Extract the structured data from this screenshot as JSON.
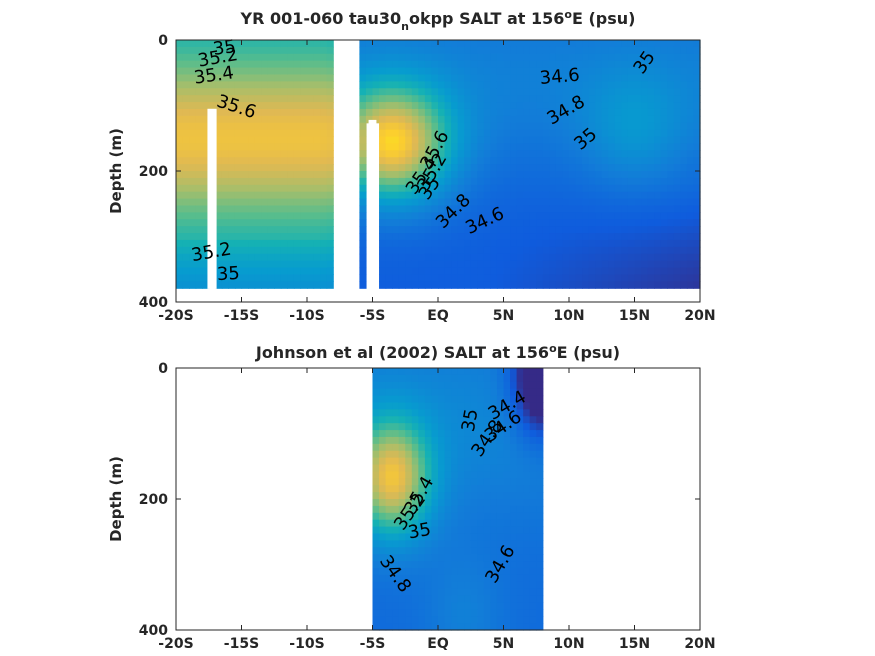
{
  "chart_data": [
    {
      "type": "heatmap",
      "subtype": "filled-contour",
      "title": "YR 001-060 tau30_nokpp SALT at 156°E (psu)",
      "title_parts": [
        "YR 001-060 tau30",
        "n",
        "okpp SALT at 156",
        "o",
        "E (psu)"
      ],
      "ylabel": "Depth (m)",
      "xlim": [
        -20,
        20
      ],
      "ylim": [
        400,
        0
      ],
      "y_reversed": true,
      "x_ticks": [
        -20,
        -15,
        -10,
        -5,
        0,
        5,
        10,
        15,
        20
      ],
      "x_tick_labels": [
        "-20S",
        "-15S",
        "-10S",
        "-5S",
        "EQ",
        "5N",
        "10N",
        "15N",
        "20N"
      ],
      "y_ticks": [
        0,
        200,
        400
      ],
      "y_tick_labels": [
        "0",
        "200",
        "400"
      ],
      "data_extent": {
        "x": [
          -20,
          20
        ],
        "y": [
          0,
          380
        ]
      },
      "missing_columns": [
        {
          "x": [
            -17.6,
            -16.9
          ],
          "y": [
            105,
            380
          ]
        },
        {
          "x": [
            -7.9,
            -6.1
          ],
          "y": [
            0,
            380
          ]
        },
        {
          "x": [
            -5.3,
            -4.7
          ],
          "y": [
            122,
            380
          ]
        }
      ],
      "color_range": [
        34.2,
        35.8
      ],
      "contour_labels": [
        {
          "text": "35",
          "x": -16.3,
          "y": 13,
          "angle": -8
        },
        {
          "text": "35.2",
          "x": -16.8,
          "y": 28,
          "angle": -10
        },
        {
          "text": "35.4",
          "x": -17.1,
          "y": 55,
          "angle": -8
        },
        {
          "text": "35.6",
          "x": -15.4,
          "y": 103,
          "angle": 18
        },
        {
          "text": "35.2",
          "x": -17.3,
          "y": 325,
          "angle": -10
        },
        {
          "text": "35",
          "x": -16.0,
          "y": 358,
          "angle": -3
        },
        {
          "text": "35.6",
          "x": -0.2,
          "y": 168,
          "angle": -62
        },
        {
          "text": "35.4",
          "x": -1.2,
          "y": 208,
          "angle": -55
        },
        {
          "text": "35.2",
          "x": -0.4,
          "y": 202,
          "angle": -60
        },
        {
          "text": "35",
          "x": -0.6,
          "y": 227,
          "angle": -55
        },
        {
          "text": "34.8",
          "x": 1.2,
          "y": 262,
          "angle": -45
        },
        {
          "text": "34.6",
          "x": 3.6,
          "y": 277,
          "angle": -25
        },
        {
          "text": "34.6",
          "x": 9.3,
          "y": 57,
          "angle": -5
        },
        {
          "text": "34.8",
          "x": 9.8,
          "y": 108,
          "angle": -30
        },
        {
          "text": "35",
          "x": 11.3,
          "y": 152,
          "angle": -40
        },
        {
          "text": "35",
          "x": 15.8,
          "y": 35,
          "angle": -55
        }
      ]
    },
    {
      "type": "heatmap",
      "subtype": "filled-contour",
      "title": "Johnson et al (2002) SALT at 156°E (psu)",
      "title_parts": [
        "Johnson et al (2002) SALT at 156",
        "o",
        "E (psu)"
      ],
      "ylabel": "Depth (m)",
      "xlim": [
        -20,
        20
      ],
      "ylim": [
        400,
        0
      ],
      "y_reversed": true,
      "x_ticks": [
        -20,
        -15,
        -10,
        -5,
        0,
        5,
        10,
        15,
        20
      ],
      "x_tick_labels": [
        "-20S",
        "-15S",
        "-10S",
        "-5S",
        "EQ",
        "5N",
        "10N",
        "15N",
        "20N"
      ],
      "y_ticks": [
        0,
        200,
        400
      ],
      "y_tick_labels": [
        "0",
        "200",
        "400"
      ],
      "data_extent": {
        "x": [
          -5,
          8
        ],
        "y": [
          0,
          400
        ]
      },
      "color_range": [
        34.2,
        35.8
      ],
      "contour_labels": [
        {
          "text": "34.4",
          "x": 5.3,
          "y": 58,
          "angle": -30
        },
        {
          "text": "34.6",
          "x": 5.0,
          "y": 90,
          "angle": -35
        },
        {
          "text": "34.8",
          "x": 3.8,
          "y": 108,
          "angle": -55
        },
        {
          "text": "35",
          "x": 2.5,
          "y": 80,
          "angle": -80
        },
        {
          "text": "35.4",
          "x": -1.4,
          "y": 195,
          "angle": -60
        },
        {
          "text": "35.2",
          "x": -2.1,
          "y": 220,
          "angle": -55
        },
        {
          "text": "35",
          "x": -1.4,
          "y": 250,
          "angle": -10
        },
        {
          "text": "34.8",
          "x": -3.3,
          "y": 315,
          "angle": 55
        },
        {
          "text": "34.6",
          "x": 4.8,
          "y": 300,
          "angle": -60
        }
      ]
    }
  ]
}
